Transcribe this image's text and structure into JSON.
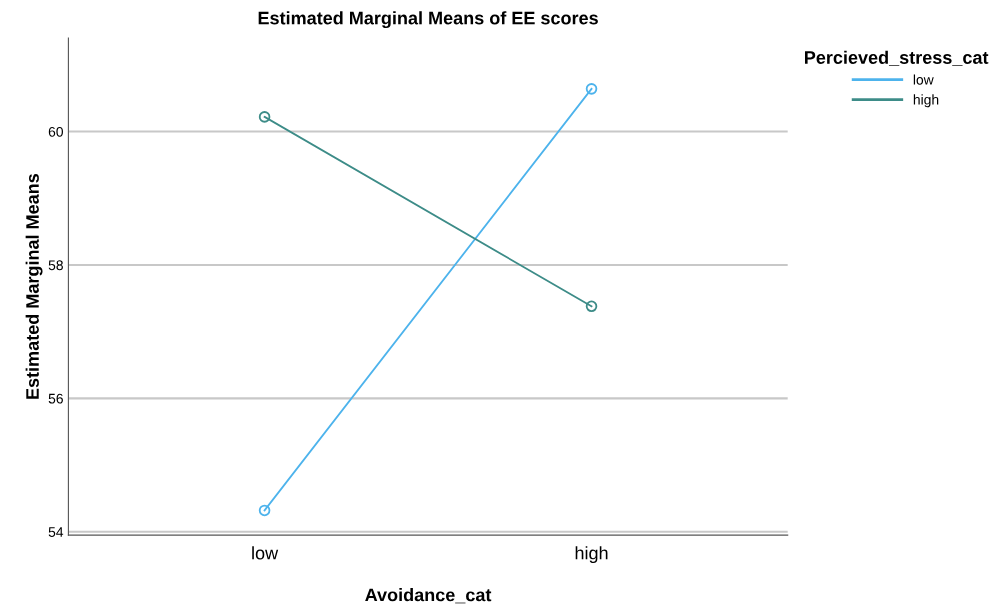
{
  "chart_data": {
    "type": "line",
    "title": "Estimated Marginal Means of EE scores",
    "xlabel": "Avoidance_cat",
    "ylabel": "Estimated Marginal Means",
    "legend_title": "Percieved_stress_cat",
    "categories": [
      "low",
      "high"
    ],
    "series": [
      {
        "name": "low",
        "color": "#4db3ec",
        "values": [
          54.32,
          60.64
        ]
      },
      {
        "name": "high",
        "color": "#3d8c88",
        "values": [
          60.22,
          57.38
        ]
      }
    ],
    "ylim": [
      53.95,
      61.4
    ],
    "yticks": [
      54,
      56,
      58,
      60
    ],
    "grid": "y",
    "legend": "top right",
    "marker": "circle",
    "line_style": "solid"
  }
}
